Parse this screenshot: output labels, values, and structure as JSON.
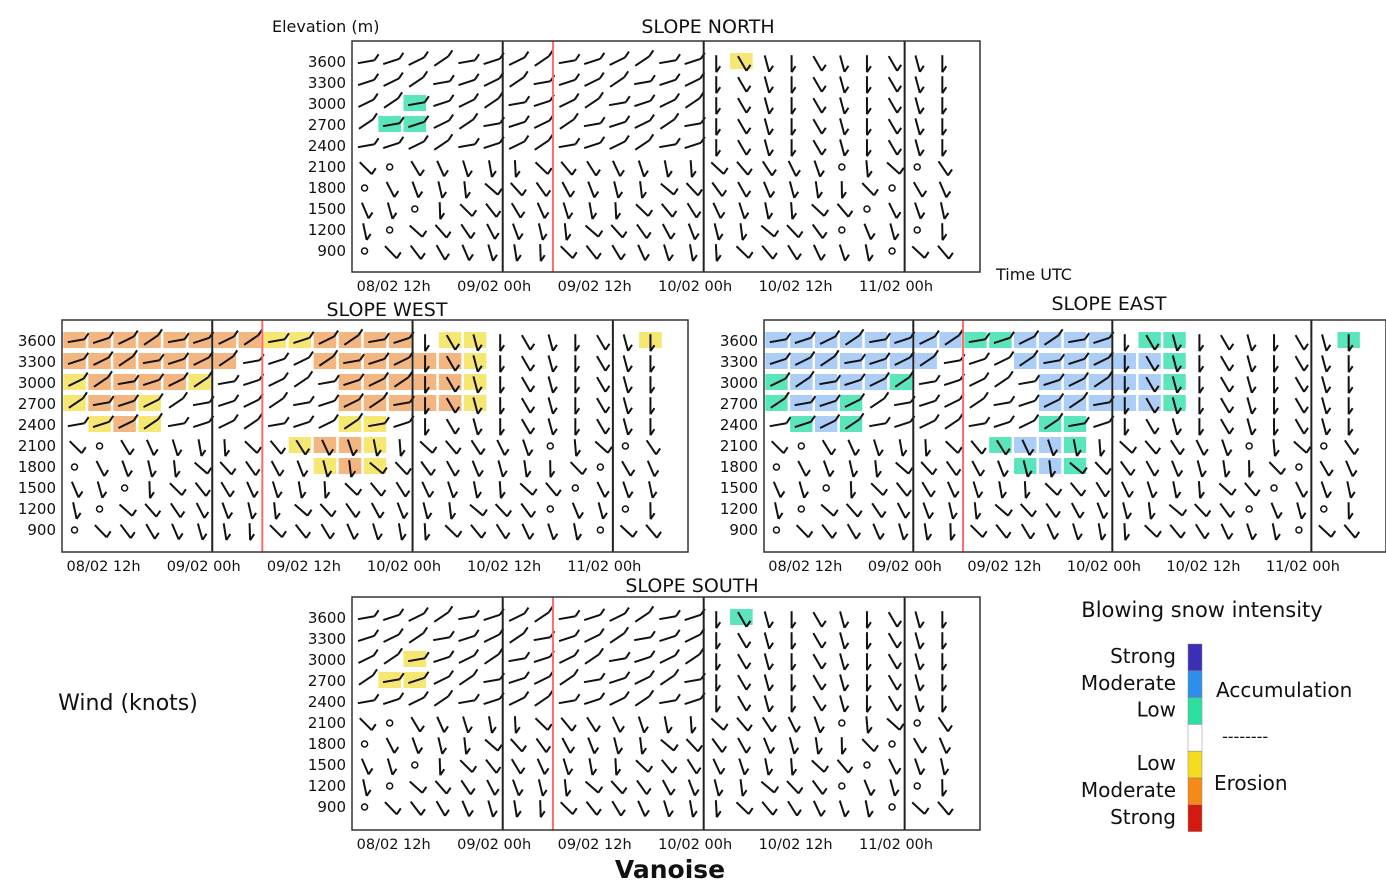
{
  "figure_title": "Vanoise",
  "time_unit_label": "Time UTC",
  "elevation_label": "Elevation (m)",
  "wind_label": "Wind (knots)",
  "elevations": [
    3600,
    3300,
    3000,
    2700,
    2400,
    2100,
    1800,
    1500,
    1200,
    900
  ],
  "time_ticks": [
    "08/02 12h",
    "09/02 00h",
    "09/02 12h",
    "10/02 00h",
    "10/02 12h",
    "11/02 00h"
  ],
  "legend": {
    "title": "Blowing snow intensity",
    "accumulation_label": "Accumulation",
    "erosion_label": "Erosion",
    "separator": "--------",
    "levels": [
      {
        "label": "Strong",
        "color": "#3a2fb5"
      },
      {
        "label": "Moderate",
        "color": "#2e8fea"
      },
      {
        "label": "Low",
        "color": "#2ee0a0"
      },
      {
        "label": "",
        "color": "#ffffff"
      },
      {
        "label": "Low",
        "color": "#f5dc1e"
      },
      {
        "label": "Moderate",
        "color": "#f58a1a"
      },
      {
        "label": "Strong",
        "color": "#d41a10"
      }
    ]
  },
  "chart_data": [
    {
      "type": "heatmap",
      "title": "SLOPE NORTH",
      "ylabel": "Elevation (m)",
      "xlabel": "",
      "y": [
        3600,
        3300,
        3000,
        2700,
        2400,
        2100,
        1800,
        1500,
        1200,
        900
      ],
      "x_ticks": [
        "08/02 12h",
        "09/02 00h",
        "09/02 12h",
        "10/02 00h",
        "10/02 12h",
        "11/02 00h"
      ],
      "cells": [
        {
          "elevation": 3600,
          "slot": 15,
          "category": "erosion-low"
        },
        {
          "elevation": 3000,
          "slot": 2,
          "category": "accumulation-low"
        },
        {
          "elevation": 2700,
          "slot": 1,
          "category": "accumulation-low"
        },
        {
          "elevation": 2700,
          "slot": 2,
          "category": "accumulation-low"
        }
      ]
    },
    {
      "type": "heatmap",
      "title": "SLOPE WEST",
      "ylabel": "Elevation (m)",
      "xlabel": "",
      "y": [
        3600,
        3300,
        3000,
        2700,
        2400,
        2100,
        1800,
        1500,
        1200,
        900
      ],
      "x_ticks": [
        "08/02 12h",
        "09/02 00h",
        "09/02 12h",
        "10/02 00h",
        "10/02 12h",
        "11/02 00h"
      ],
      "cells": [
        {
          "elevation": 3600,
          "slot": 0,
          "category": "erosion-moderate"
        },
        {
          "elevation": 3600,
          "slot": 1,
          "category": "erosion-moderate"
        },
        {
          "elevation": 3600,
          "slot": 2,
          "category": "erosion-moderate"
        },
        {
          "elevation": 3600,
          "slot": 3,
          "category": "erosion-moderate"
        },
        {
          "elevation": 3600,
          "slot": 4,
          "category": "erosion-moderate"
        },
        {
          "elevation": 3600,
          "slot": 5,
          "category": "erosion-moderate"
        },
        {
          "elevation": 3600,
          "slot": 6,
          "category": "erosion-moderate"
        },
        {
          "elevation": 3600,
          "slot": 7,
          "category": "erosion-moderate"
        },
        {
          "elevation": 3600,
          "slot": 8,
          "category": "erosion-low"
        },
        {
          "elevation": 3600,
          "slot": 9,
          "category": "erosion-low"
        },
        {
          "elevation": 3600,
          "slot": 10,
          "category": "erosion-moderate"
        },
        {
          "elevation": 3600,
          "slot": 11,
          "category": "erosion-moderate"
        },
        {
          "elevation": 3600,
          "slot": 12,
          "category": "erosion-moderate"
        },
        {
          "elevation": 3600,
          "slot": 13,
          "category": "erosion-moderate"
        },
        {
          "elevation": 3600,
          "slot": 15,
          "category": "erosion-low"
        },
        {
          "elevation": 3600,
          "slot": 16,
          "category": "erosion-low"
        },
        {
          "elevation": 3600,
          "slot": 23,
          "category": "erosion-low"
        },
        {
          "elevation": 3300,
          "slot": 0,
          "category": "erosion-moderate"
        },
        {
          "elevation": 3300,
          "slot": 1,
          "category": "erosion-moderate"
        },
        {
          "elevation": 3300,
          "slot": 2,
          "category": "erosion-moderate"
        },
        {
          "elevation": 3300,
          "slot": 3,
          "category": "erosion-moderate"
        },
        {
          "elevation": 3300,
          "slot": 4,
          "category": "erosion-moderate"
        },
        {
          "elevation": 3300,
          "slot": 5,
          "category": "erosion-moderate"
        },
        {
          "elevation": 3300,
          "slot": 6,
          "category": "erosion-moderate"
        },
        {
          "elevation": 3300,
          "slot": 10,
          "category": "erosion-moderate"
        },
        {
          "elevation": 3300,
          "slot": 11,
          "category": "erosion-moderate"
        },
        {
          "elevation": 3300,
          "slot": 12,
          "category": "erosion-moderate"
        },
        {
          "elevation": 3300,
          "slot": 13,
          "category": "erosion-moderate"
        },
        {
          "elevation": 3300,
          "slot": 14,
          "category": "erosion-moderate"
        },
        {
          "elevation": 3300,
          "slot": 15,
          "category": "erosion-moderate"
        },
        {
          "elevation": 3300,
          "slot": 16,
          "category": "erosion-low"
        },
        {
          "elevation": 3000,
          "slot": 0,
          "category": "erosion-low"
        },
        {
          "elevation": 3000,
          "slot": 1,
          "category": "erosion-moderate"
        },
        {
          "elevation": 3000,
          "slot": 2,
          "category": "erosion-moderate"
        },
        {
          "elevation": 3000,
          "slot": 3,
          "category": "erosion-moderate"
        },
        {
          "elevation": 3000,
          "slot": 4,
          "category": "erosion-moderate"
        },
        {
          "elevation": 3000,
          "slot": 5,
          "category": "erosion-low"
        },
        {
          "elevation": 3000,
          "slot": 11,
          "category": "erosion-moderate"
        },
        {
          "elevation": 3000,
          "slot": 12,
          "category": "erosion-moderate"
        },
        {
          "elevation": 3000,
          "slot": 13,
          "category": "erosion-moderate"
        },
        {
          "elevation": 3000,
          "slot": 14,
          "category": "erosion-moderate"
        },
        {
          "elevation": 3000,
          "slot": 15,
          "category": "erosion-moderate"
        },
        {
          "elevation": 3000,
          "slot": 16,
          "category": "erosion-low"
        },
        {
          "elevation": 2700,
          "slot": 0,
          "category": "erosion-low"
        },
        {
          "elevation": 2700,
          "slot": 1,
          "category": "erosion-moderate"
        },
        {
          "elevation": 2700,
          "slot": 2,
          "category": "erosion-moderate"
        },
        {
          "elevation": 2700,
          "slot": 3,
          "category": "erosion-low"
        },
        {
          "elevation": 2700,
          "slot": 11,
          "category": "erosion-moderate"
        },
        {
          "elevation": 2700,
          "slot": 12,
          "category": "erosion-moderate"
        },
        {
          "elevation": 2700,
          "slot": 13,
          "category": "erosion-moderate"
        },
        {
          "elevation": 2700,
          "slot": 14,
          "category": "erosion-moderate"
        },
        {
          "elevation": 2700,
          "slot": 15,
          "category": "erosion-moderate"
        },
        {
          "elevation": 2700,
          "slot": 16,
          "category": "erosion-low"
        },
        {
          "elevation": 2400,
          "slot": 1,
          "category": "erosion-low"
        },
        {
          "elevation": 2400,
          "slot": 2,
          "category": "erosion-moderate"
        },
        {
          "elevation": 2400,
          "slot": 3,
          "category": "erosion-low"
        },
        {
          "elevation": 2400,
          "slot": 11,
          "category": "erosion-low"
        },
        {
          "elevation": 2400,
          "slot": 12,
          "category": "erosion-low"
        },
        {
          "elevation": 2100,
          "slot": 9,
          "category": "erosion-low"
        },
        {
          "elevation": 2100,
          "slot": 10,
          "category": "erosion-moderate"
        },
        {
          "elevation": 2100,
          "slot": 11,
          "category": "erosion-moderate"
        },
        {
          "elevation": 2100,
          "slot": 12,
          "category": "erosion-low"
        },
        {
          "elevation": 1800,
          "slot": 10,
          "category": "erosion-low"
        },
        {
          "elevation": 1800,
          "slot": 11,
          "category": "erosion-moderate"
        },
        {
          "elevation": 1800,
          "slot": 12,
          "category": "erosion-low"
        }
      ]
    },
    {
      "type": "heatmap",
      "title": "SLOPE EAST",
      "ylabel": "Elevation (m)",
      "xlabel": "Time UTC",
      "y": [
        3600,
        3300,
        3000,
        2700,
        2400,
        2100,
        1800,
        1500,
        1200,
        900
      ],
      "x_ticks": [
        "08/02 12h",
        "09/02 00h",
        "09/02 12h",
        "10/02 00h",
        "10/02 12h",
        "11/02 00h"
      ],
      "cells": [
        {
          "elevation": 3600,
          "slot": 0,
          "category": "accumulation-moderate"
        },
        {
          "elevation": 3600,
          "slot": 1,
          "category": "accumulation-moderate"
        },
        {
          "elevation": 3600,
          "slot": 2,
          "category": "accumulation-moderate"
        },
        {
          "elevation": 3600,
          "slot": 3,
          "category": "accumulation-moderate"
        },
        {
          "elevation": 3600,
          "slot": 4,
          "category": "accumulation-moderate"
        },
        {
          "elevation": 3600,
          "slot": 5,
          "category": "accumulation-moderate"
        },
        {
          "elevation": 3600,
          "slot": 6,
          "category": "accumulation-moderate"
        },
        {
          "elevation": 3600,
          "slot": 7,
          "category": "accumulation-moderate"
        },
        {
          "elevation": 3600,
          "slot": 8,
          "category": "accumulation-low"
        },
        {
          "elevation": 3600,
          "slot": 9,
          "category": "accumulation-low"
        },
        {
          "elevation": 3600,
          "slot": 10,
          "category": "accumulation-moderate"
        },
        {
          "elevation": 3600,
          "slot": 11,
          "category": "accumulation-moderate"
        },
        {
          "elevation": 3600,
          "slot": 12,
          "category": "accumulation-moderate"
        },
        {
          "elevation": 3600,
          "slot": 13,
          "category": "accumulation-moderate"
        },
        {
          "elevation": 3600,
          "slot": 15,
          "category": "accumulation-low"
        },
        {
          "elevation": 3600,
          "slot": 16,
          "category": "accumulation-low"
        },
        {
          "elevation": 3600,
          "slot": 23,
          "category": "accumulation-low"
        },
        {
          "elevation": 3300,
          "slot": 0,
          "category": "accumulation-moderate"
        },
        {
          "elevation": 3300,
          "slot": 1,
          "category": "accumulation-moderate"
        },
        {
          "elevation": 3300,
          "slot": 2,
          "category": "accumulation-moderate"
        },
        {
          "elevation": 3300,
          "slot": 3,
          "category": "accumulation-moderate"
        },
        {
          "elevation": 3300,
          "slot": 4,
          "category": "accumulation-moderate"
        },
        {
          "elevation": 3300,
          "slot": 5,
          "category": "accumulation-moderate"
        },
        {
          "elevation": 3300,
          "slot": 6,
          "category": "accumulation-moderate"
        },
        {
          "elevation": 3300,
          "slot": 10,
          "category": "accumulation-moderate"
        },
        {
          "elevation": 3300,
          "slot": 11,
          "category": "accumulation-moderate"
        },
        {
          "elevation": 3300,
          "slot": 12,
          "category": "accumulation-moderate"
        },
        {
          "elevation": 3300,
          "slot": 13,
          "category": "accumulation-moderate"
        },
        {
          "elevation": 3300,
          "slot": 14,
          "category": "accumulation-moderate"
        },
        {
          "elevation": 3300,
          "slot": 15,
          "category": "accumulation-moderate"
        },
        {
          "elevation": 3300,
          "slot": 16,
          "category": "accumulation-low"
        },
        {
          "elevation": 3000,
          "slot": 0,
          "category": "accumulation-low"
        },
        {
          "elevation": 3000,
          "slot": 1,
          "category": "accumulation-moderate"
        },
        {
          "elevation": 3000,
          "slot": 2,
          "category": "accumulation-moderate"
        },
        {
          "elevation": 3000,
          "slot": 3,
          "category": "accumulation-moderate"
        },
        {
          "elevation": 3000,
          "slot": 4,
          "category": "accumulation-moderate"
        },
        {
          "elevation": 3000,
          "slot": 5,
          "category": "accumulation-low"
        },
        {
          "elevation": 3000,
          "slot": 11,
          "category": "accumulation-moderate"
        },
        {
          "elevation": 3000,
          "slot": 12,
          "category": "accumulation-moderate"
        },
        {
          "elevation": 3000,
          "slot": 13,
          "category": "accumulation-moderate"
        },
        {
          "elevation": 3000,
          "slot": 14,
          "category": "accumulation-moderate"
        },
        {
          "elevation": 3000,
          "slot": 15,
          "category": "accumulation-moderate"
        },
        {
          "elevation": 3000,
          "slot": 16,
          "category": "accumulation-low"
        },
        {
          "elevation": 2700,
          "slot": 0,
          "category": "accumulation-low"
        },
        {
          "elevation": 2700,
          "slot": 1,
          "category": "accumulation-moderate"
        },
        {
          "elevation": 2700,
          "slot": 2,
          "category": "accumulation-moderate"
        },
        {
          "elevation": 2700,
          "slot": 3,
          "category": "accumulation-low"
        },
        {
          "elevation": 2700,
          "slot": 11,
          "category": "accumulation-moderate"
        },
        {
          "elevation": 2700,
          "slot": 12,
          "category": "accumulation-moderate"
        },
        {
          "elevation": 2700,
          "slot": 13,
          "category": "accumulation-moderate"
        },
        {
          "elevation": 2700,
          "slot": 14,
          "category": "accumulation-moderate"
        },
        {
          "elevation": 2700,
          "slot": 15,
          "category": "accumulation-moderate"
        },
        {
          "elevation": 2700,
          "slot": 16,
          "category": "accumulation-low"
        },
        {
          "elevation": 2400,
          "slot": 1,
          "category": "accumulation-low"
        },
        {
          "elevation": 2400,
          "slot": 2,
          "category": "accumulation-moderate"
        },
        {
          "elevation": 2400,
          "slot": 3,
          "category": "accumulation-low"
        },
        {
          "elevation": 2400,
          "slot": 11,
          "category": "accumulation-low"
        },
        {
          "elevation": 2400,
          "slot": 12,
          "category": "accumulation-low"
        },
        {
          "elevation": 2100,
          "slot": 9,
          "category": "accumulation-low"
        },
        {
          "elevation": 2100,
          "slot": 10,
          "category": "accumulation-moderate"
        },
        {
          "elevation": 2100,
          "slot": 11,
          "category": "accumulation-moderate"
        },
        {
          "elevation": 2100,
          "slot": 12,
          "category": "accumulation-low"
        },
        {
          "elevation": 1800,
          "slot": 10,
          "category": "accumulation-low"
        },
        {
          "elevation": 1800,
          "slot": 11,
          "category": "accumulation-moderate"
        },
        {
          "elevation": 1800,
          "slot": 12,
          "category": "accumulation-low"
        }
      ]
    },
    {
      "type": "heatmap",
      "title": "SLOPE SOUTH",
      "ylabel": "Elevation (m)",
      "xlabel": "",
      "y": [
        3600,
        3300,
        3000,
        2700,
        2400,
        2100,
        1800,
        1500,
        1200,
        900
      ],
      "x_ticks": [
        "08/02 12h",
        "09/02 00h",
        "09/02 12h",
        "10/02 00h",
        "10/02 12h",
        "11/02 00h"
      ],
      "cells": [
        {
          "elevation": 3600,
          "slot": 15,
          "category": "accumulation-low"
        },
        {
          "elevation": 3000,
          "slot": 2,
          "category": "erosion-low"
        },
        {
          "elevation": 2700,
          "slot": 1,
          "category": "erosion-low"
        },
        {
          "elevation": 2700,
          "slot": 2,
          "category": "erosion-low"
        }
      ]
    }
  ]
}
